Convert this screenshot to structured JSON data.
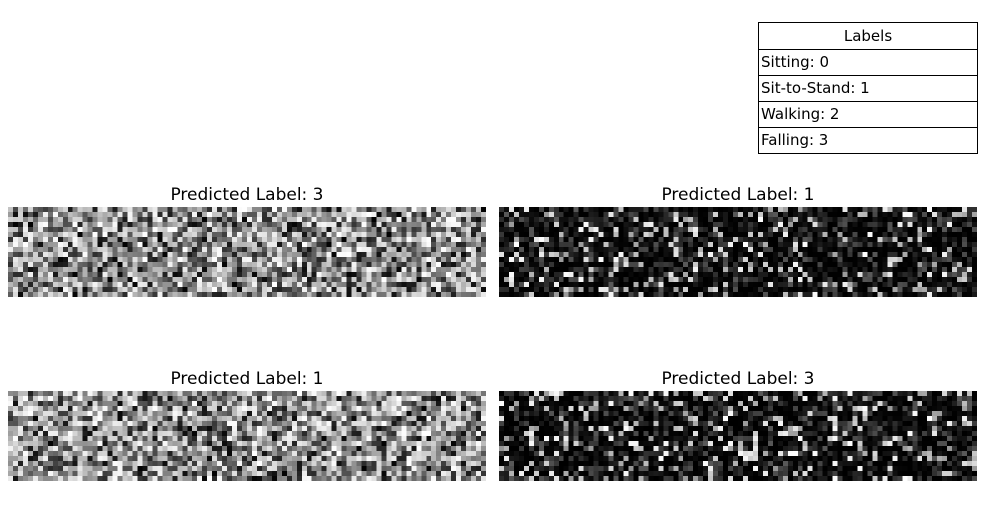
{
  "legend": {
    "title": "Labels",
    "items": [
      "Sitting: 0",
      "Sit-to-Stand: 1",
      "Walking: 2",
      "Falling: 3"
    ]
  },
  "panels": [
    {
      "title": "Predicted Label: 3",
      "tone": "bright"
    },
    {
      "title": "Predicted Label: 1",
      "tone": "dark"
    },
    {
      "title": "Predicted Label: 1",
      "tone": "bright"
    },
    {
      "title": "Predicted Label: 3",
      "tone": "dark"
    }
  ]
}
